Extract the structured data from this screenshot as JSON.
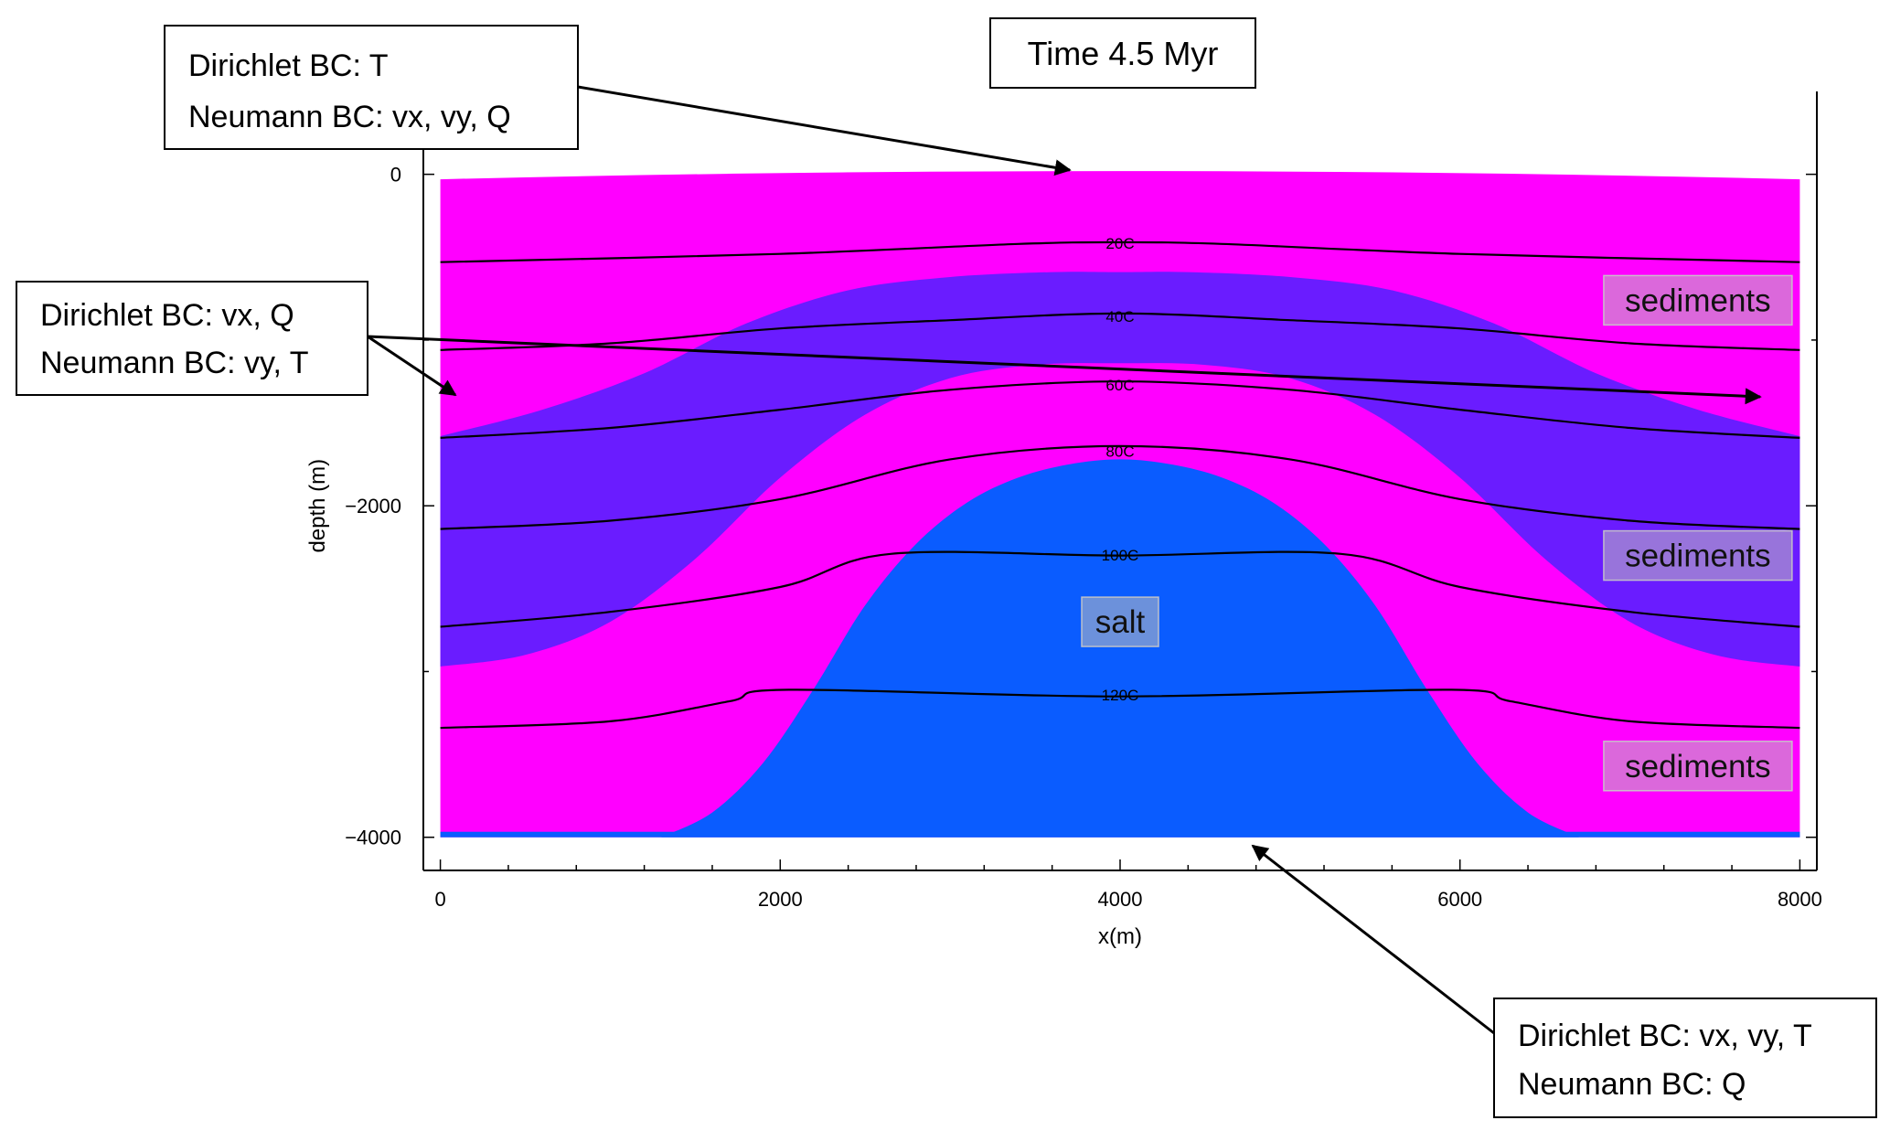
{
  "title": "Time 4.5 Myr",
  "chart_data": {
    "type": "heatmap",
    "title": "Time 4.5 Myr",
    "xlabel": "x(m)",
    "ylabel": "depth (m)",
    "xlim": [
      -100,
      8100
    ],
    "ylim": [
      -4200,
      500
    ],
    "x_ticks": [
      0,
      2000,
      4000,
      6000,
      8000
    ],
    "y_ticks": [
      0,
      -2000,
      -4000
    ],
    "x_tick_labels": [
      "0",
      "2000",
      "4000",
      "6000",
      "8000"
    ],
    "y_tick_labels": [
      "0",
      "−2000",
      "−4000"
    ],
    "grid": false,
    "colors": {
      "sediments": "#ff00ff",
      "middle_layer": "#6a1cff",
      "salt": "#0a5cff",
      "contour": "#000000"
    },
    "surface": [
      {
        "x": 0,
        "y": -30
      },
      {
        "x": 4000,
        "y": 25
      },
      {
        "x": 8000,
        "y": -30
      }
    ],
    "regions": [
      {
        "label": "sediments",
        "x": 7400,
        "y": -760
      },
      {
        "label": "sediments",
        "x": 7400,
        "y": -2300
      },
      {
        "label": "salt",
        "x": 4000,
        "y": -2700
      },
      {
        "label": "sediments",
        "x": 7400,
        "y": -3570
      }
    ],
    "layer_middle_top": [
      [
        0,
        -1580
      ],
      [
        600,
        -1420
      ],
      [
        1200,
        -1200
      ],
      [
        1800,
        -900
      ],
      [
        2400,
        -700
      ],
      [
        3000,
        -620
      ],
      [
        3600,
        -590
      ],
      [
        4000,
        -590
      ],
      [
        4400,
        -590
      ],
      [
        5000,
        -620
      ],
      [
        5600,
        -700
      ],
      [
        6200,
        -900
      ],
      [
        6800,
        -1200
      ],
      [
        7400,
        -1420
      ],
      [
        8000,
        -1580
      ]
    ],
    "layer_middle_bottom": [
      [
        8000,
        -2970
      ],
      [
        7500,
        -2900
      ],
      [
        7000,
        -2700
      ],
      [
        6500,
        -2320
      ],
      [
        6000,
        -1830
      ],
      [
        5500,
        -1450
      ],
      [
        5000,
        -1230
      ],
      [
        4500,
        -1150
      ],
      [
        4000,
        -1140
      ],
      [
        3500,
        -1150
      ],
      [
        3000,
        -1230
      ],
      [
        2500,
        -1450
      ],
      [
        2000,
        -1830
      ],
      [
        1500,
        -2320
      ],
      [
        1000,
        -2700
      ],
      [
        500,
        -2900
      ],
      [
        0,
        -2970
      ]
    ],
    "salt_outline": [
      [
        1300,
        -4000
      ],
      [
        1600,
        -3850
      ],
      [
        1900,
        -3550
      ],
      [
        2200,
        -3100
      ],
      [
        2500,
        -2600
      ],
      [
        2800,
        -2230
      ],
      [
        3100,
        -1980
      ],
      [
        3400,
        -1830
      ],
      [
        3700,
        -1750
      ],
      [
        4000,
        -1720
      ],
      [
        4300,
        -1750
      ],
      [
        4600,
        -1830
      ],
      [
        4900,
        -1980
      ],
      [
        5200,
        -2230
      ],
      [
        5500,
        -2600
      ],
      [
        5800,
        -3100
      ],
      [
        6100,
        -3550
      ],
      [
        6400,
        -3850
      ],
      [
        6700,
        -4000
      ]
    ],
    "series": [
      {
        "name": "20C",
        "label_x": 3600,
        "points": [
          [
            0,
            -530
          ],
          [
            2000,
            -480
          ],
          [
            3400,
            -420
          ],
          [
            4000,
            -410
          ],
          [
            4600,
            -420
          ],
          [
            6000,
            -480
          ],
          [
            8000,
            -530
          ]
        ]
      },
      {
        "name": "40C",
        "label_x": 3600,
        "points": [
          [
            0,
            -1060
          ],
          [
            1000,
            -1020
          ],
          [
            2000,
            -930
          ],
          [
            3000,
            -880
          ],
          [
            4000,
            -840
          ],
          [
            5000,
            -880
          ],
          [
            6000,
            -930
          ],
          [
            7000,
            -1020
          ],
          [
            8000,
            -1060
          ]
        ]
      },
      {
        "name": "60C",
        "label_x": 3600,
        "points": [
          [
            0,
            -1590
          ],
          [
            1000,
            -1530
          ],
          [
            2000,
            -1420
          ],
          [
            3000,
            -1300
          ],
          [
            4000,
            -1250
          ],
          [
            5000,
            -1300
          ],
          [
            6000,
            -1420
          ],
          [
            7000,
            -1530
          ],
          [
            8000,
            -1590
          ]
        ]
      },
      {
        "name": "80C",
        "label_x": 3600,
        "points": [
          [
            0,
            -2140
          ],
          [
            1000,
            -2090
          ],
          [
            2000,
            -1960
          ],
          [
            3000,
            -1720
          ],
          [
            4000,
            -1640
          ],
          [
            5000,
            -1720
          ],
          [
            6000,
            -1960
          ],
          [
            7000,
            -2090
          ],
          [
            8000,
            -2140
          ]
        ]
      },
      {
        "name": "100C",
        "label_x": 3600,
        "points": [
          [
            0,
            -2730
          ],
          [
            1000,
            -2640
          ],
          [
            2000,
            -2490
          ],
          [
            2650,
            -2290
          ],
          [
            4000,
            -2300
          ],
          [
            5300,
            -2290
          ],
          [
            6000,
            -2490
          ],
          [
            7000,
            -2640
          ],
          [
            8000,
            -2730
          ]
        ]
      },
      {
        "name": "120C",
        "label_x": 3600,
        "points": [
          [
            0,
            -3340
          ],
          [
            1000,
            -3300
          ],
          [
            1700,
            -3180
          ],
          [
            2050,
            -3110
          ],
          [
            4000,
            -3150
          ],
          [
            5950,
            -3110
          ],
          [
            6300,
            -3180
          ],
          [
            7000,
            -3300
          ],
          [
            8000,
            -3340
          ]
        ]
      }
    ]
  },
  "annotations": [
    {
      "lines": [
        "Dirichlet BC: T",
        "Neumann BC: vx, vy, Q"
      ]
    },
    {
      "lines": [
        "Dirichlet BC: vx, Q",
        "Neumann BC: vy, T"
      ]
    },
    {
      "lines": [
        "Dirichlet BC: vx, vy, T",
        "Neumann BC: Q"
      ]
    }
  ]
}
